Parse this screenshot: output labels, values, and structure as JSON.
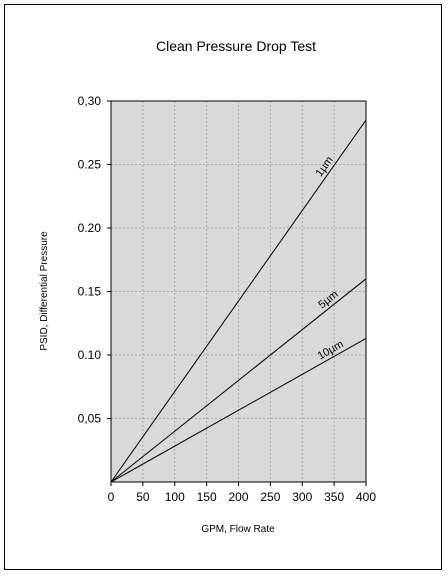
{
  "chart_data": {
    "type": "line",
    "title": "Clean Pressure Drop Test",
    "xlabel": "GPM, Flow Rate",
    "ylabel": "PSID, Differential Pressure",
    "xlim": [
      0,
      400
    ],
    "ylim": [
      0,
      0.3
    ],
    "xticks": [
      0,
      50,
      100,
      150,
      200,
      250,
      300,
      350,
      400
    ],
    "xtick_labels": [
      "0",
      "50",
      "100",
      "150",
      "200",
      "250",
      "300",
      "350",
      "400"
    ],
    "yticks": [
      0.05,
      0.1,
      0.15,
      0.2,
      0.25,
      0.3
    ],
    "ytick_labels": [
      "0,05",
      "0.10",
      "0.15",
      "0.20",
      "0.25",
      "0,30"
    ],
    "grid": true,
    "plot_background": "#d9d9d9",
    "grid_color": "#9a9a9a",
    "line_color": "#000000",
    "series": [
      {
        "name": "1µm",
        "x": [
          0,
          400
        ],
        "y": [
          0,
          0.285
        ]
      },
      {
        "name": "5µm",
        "x": [
          0,
          400
        ],
        "y": [
          0,
          0.16
        ]
      },
      {
        "name": "10µm",
        "x": [
          0,
          400
        ],
        "y": [
          0,
          0.113
        ]
      }
    ]
  }
}
